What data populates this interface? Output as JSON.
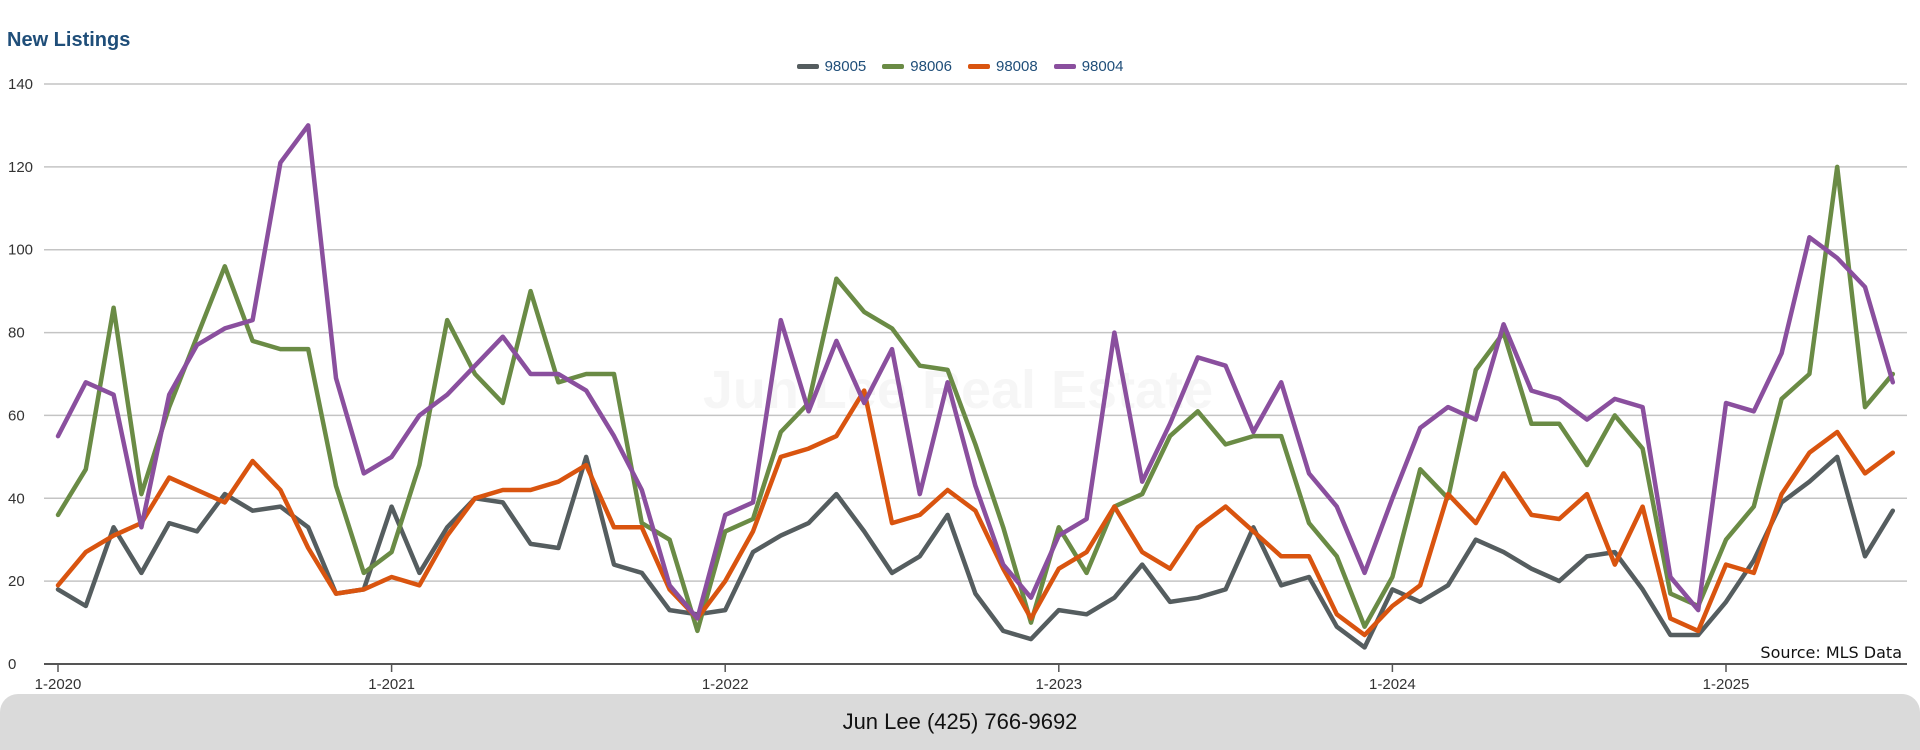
{
  "chart_data": {
    "type": "line",
    "title": "New Listings",
    "watermark": "Jun Lee Real Estate",
    "source": "Source: MLS Data",
    "ylim": [
      0,
      140
    ],
    "yticks": [
      0,
      20,
      40,
      60,
      80,
      100,
      120,
      140
    ],
    "xtick_labels": [
      "1-2020",
      "1-2021",
      "1-2022",
      "1-2023",
      "1-2024",
      "1-2025"
    ],
    "x": [
      "1-2020",
      "2-2020",
      "3-2020",
      "4-2020",
      "5-2020",
      "6-2020",
      "7-2020",
      "8-2020",
      "9-2020",
      "10-2020",
      "11-2020",
      "12-2020",
      "1-2021",
      "2-2021",
      "3-2021",
      "4-2021",
      "5-2021",
      "6-2021",
      "7-2021",
      "8-2021",
      "9-2021",
      "10-2021",
      "11-2021",
      "12-2021",
      "1-2022",
      "2-2022",
      "3-2022",
      "4-2022",
      "5-2022",
      "6-2022",
      "7-2022",
      "8-2022",
      "9-2022",
      "10-2022",
      "11-2022",
      "12-2022",
      "1-2023",
      "2-2023",
      "3-2023",
      "4-2023",
      "5-2023",
      "6-2023",
      "7-2023",
      "8-2023",
      "9-2023",
      "10-2023",
      "11-2023",
      "12-2023",
      "1-2024",
      "2-2024",
      "3-2024",
      "4-2024",
      "5-2024",
      "6-2024",
      "7-2024",
      "8-2024",
      "9-2024",
      "10-2024",
      "11-2024",
      "12-2024",
      "1-2025",
      "2-2025",
      "3-2025",
      "4-2025",
      "5-2025",
      "6-2025",
      "7-2025"
    ],
    "grid": true,
    "legend_position": "top-center",
    "series": [
      {
        "name": "98005",
        "color": "#555d5f",
        "values": [
          18,
          14,
          33,
          22,
          34,
          32,
          41,
          37,
          38,
          33,
          17,
          18,
          38,
          22,
          33,
          40,
          39,
          29,
          28,
          50,
          24,
          22,
          13,
          12,
          13,
          27,
          31,
          34,
          41,
          32,
          22,
          26,
          36,
          17,
          8,
          6,
          13,
          12,
          16,
          24,
          15,
          16,
          18,
          33,
          19,
          21,
          9,
          4,
          18,
          15,
          19,
          30,
          27,
          23,
          20,
          26,
          27,
          18,
          7,
          7,
          15,
          25,
          39,
          44,
          50,
          26,
          37
        ]
      },
      {
        "name": "98006",
        "color": "#6a8b45",
        "values": [
          36,
          47,
          86,
          41,
          62,
          79,
          96,
          78,
          76,
          76,
          43,
          22,
          27,
          48,
          83,
          70,
          63,
          90,
          68,
          70,
          70,
          34,
          30,
          8,
          32,
          35,
          56,
          63,
          93,
          85,
          81,
          72,
          71,
          53,
          33,
          10,
          33,
          22,
          38,
          41,
          55,
          61,
          53,
          55,
          55,
          34,
          26,
          9,
          21,
          47,
          40,
          71,
          80,
          58,
          58,
          48,
          60,
          52,
          17,
          14,
          30,
          38,
          64,
          70,
          120,
          62,
          70
        ]
      },
      {
        "name": "98008",
        "color": "#d9540f",
        "values": [
          19,
          27,
          31,
          34,
          45,
          42,
          39,
          49,
          42,
          28,
          17,
          18,
          21,
          19,
          31,
          40,
          42,
          42,
          44,
          48,
          33,
          33,
          18,
          11,
          20,
          32,
          50,
          52,
          55,
          66,
          34,
          36,
          42,
          37,
          23,
          11,
          23,
          27,
          38,
          27,
          23,
          33,
          38,
          32,
          26,
          26,
          12,
          7,
          14,
          19,
          41,
          34,
          46,
          36,
          35,
          41,
          24,
          38,
          11,
          8,
          24,
          22,
          41,
          51,
          56,
          46,
          51
        ]
      },
      {
        "name": "98004",
        "color": "#8a4f9e",
        "values": [
          55,
          68,
          65,
          33,
          65,
          77,
          81,
          83,
          121,
          130,
          69,
          46,
          50,
          60,
          65,
          72,
          79,
          70,
          70,
          66,
          55,
          42,
          19,
          11,
          36,
          39,
          83,
          61,
          78,
          63,
          76,
          41,
          68,
          43,
          24,
          16,
          31,
          35,
          80,
          44,
          58,
          74,
          72,
          56,
          68,
          46,
          38,
          22,
          40,
          57,
          62,
          59,
          82,
          66,
          64,
          59,
          64,
          62,
          21,
          13,
          63,
          61,
          75,
          103,
          98,
          91,
          68
        ]
      }
    ]
  },
  "footer": {
    "contact": "Jun Lee (425) 766-9692"
  }
}
